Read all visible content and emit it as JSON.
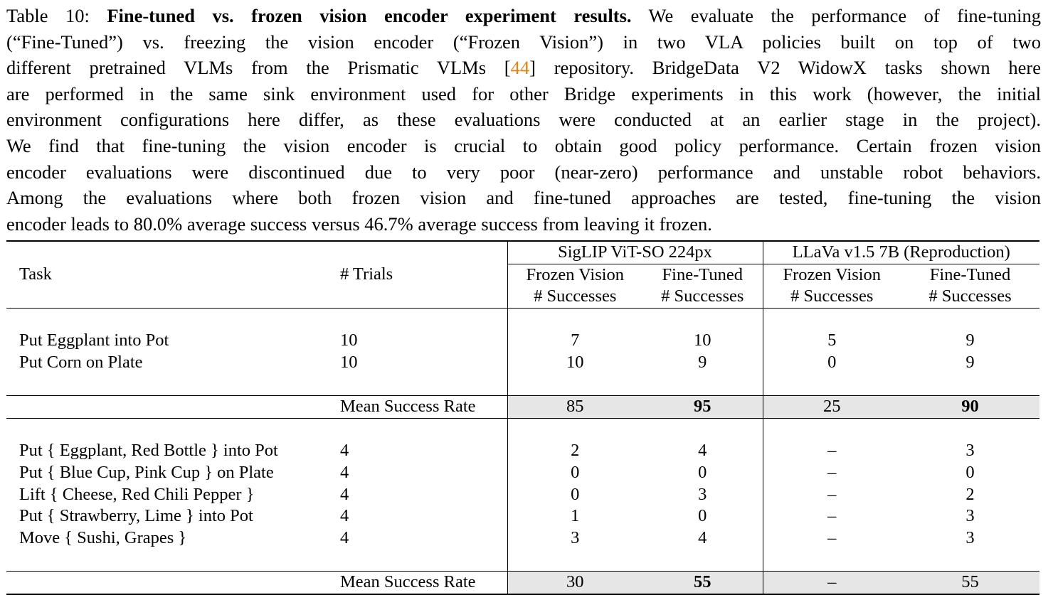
{
  "caption": {
    "lines": [
      {
        "pre": "Table 10: ",
        "bold": "Fine-tuned vs. frozen vision encoder experiment results.",
        "post": " We evaluate the performance of fine-tuning"
      },
      {
        "pre": "(“Fine-Tuned”) vs.  freezing the vision encoder (“Frozen Vision”) in two VLA policies built on top of two",
        "bold": "",
        "post": ""
      },
      {
        "pre": "different pretrained VLMs from the Prismatic VLMs [",
        "cite": "44",
        "post": "] repository. BridgeData V2 WidowX tasks shown here"
      },
      {
        "pre": "are performed in the same sink environment used for other Bridge experiments in this work (however, the initial",
        "bold": "",
        "post": ""
      },
      {
        "pre": "environment configurations here differ, as these evaluations were conducted at an earlier stage in the project).",
        "bold": "",
        "post": ""
      },
      {
        "pre": "We find that fine-tuning the vision encoder is crucial to obtain good policy performance. Certain frozen vision",
        "bold": "",
        "post": ""
      },
      {
        "pre": "encoder evaluations were discontinued due to very poor (near-zero) performance and unstable robot behaviors.",
        "bold": "",
        "post": ""
      },
      {
        "pre": "Among the evaluations where both frozen vision and fine-tuned approaches are tested, fine-tuning the vision",
        "bold": "",
        "post": ""
      },
      {
        "pre": "encoder leads to 80.0% average success versus 46.7% average success from leaving it frozen.",
        "bold": "",
        "post": ""
      }
    ]
  },
  "table": {
    "model_a": "SigLIP ViT-SO 224px",
    "model_b": "LLaVa v1.5 7B (Reproduction)",
    "col_task": "Task",
    "col_trials": "# Trials",
    "frozen_line1": "Frozen Vision",
    "tuned_line1": "Fine-Tuned",
    "successes": "# Successes",
    "group1": [
      {
        "task": "Put Eggplant into Pot",
        "trials": "10",
        "a_frozen": "7",
        "a_tuned": "10",
        "b_frozen": "5",
        "b_tuned": "9"
      },
      {
        "task": "Put Corn on Plate",
        "trials": "10",
        "a_frozen": "10",
        "a_tuned": "9",
        "b_frozen": "0",
        "b_tuned": "9"
      }
    ],
    "mean1": {
      "label": "Mean Success Rate",
      "a_frozen": "85",
      "a_tuned": "95",
      "b_frozen": "25",
      "b_tuned": "90"
    },
    "group2": [
      {
        "task": "Put { Eggplant, Red Bottle } into Pot",
        "trials": "4",
        "a_frozen": "2",
        "a_tuned": "4",
        "b_frozen": "–",
        "b_tuned": "3"
      },
      {
        "task": "Put { Blue Cup, Pink Cup } on Plate",
        "trials": "4",
        "a_frozen": "0",
        "a_tuned": "0",
        "b_frozen": "–",
        "b_tuned": "0"
      },
      {
        "task": "Lift { Cheese, Red Chili Pepper }",
        "trials": "4",
        "a_frozen": "0",
        "a_tuned": "3",
        "b_frozen": "–",
        "b_tuned": "2"
      },
      {
        "task": "Put { Strawberry, Lime } into Pot",
        "trials": "4",
        "a_frozen": "1",
        "a_tuned": "0",
        "b_frozen": "–",
        "b_tuned": "3"
      },
      {
        "task": "Move { Sushi, Grapes }",
        "trials": "4",
        "a_frozen": "3",
        "a_tuned": "4",
        "b_frozen": "–",
        "b_tuned": "3"
      }
    ],
    "mean2": {
      "label": "Mean Success Rate",
      "a_frozen": "30",
      "a_tuned": "55",
      "b_frozen": "–",
      "b_tuned": "55"
    }
  }
}
